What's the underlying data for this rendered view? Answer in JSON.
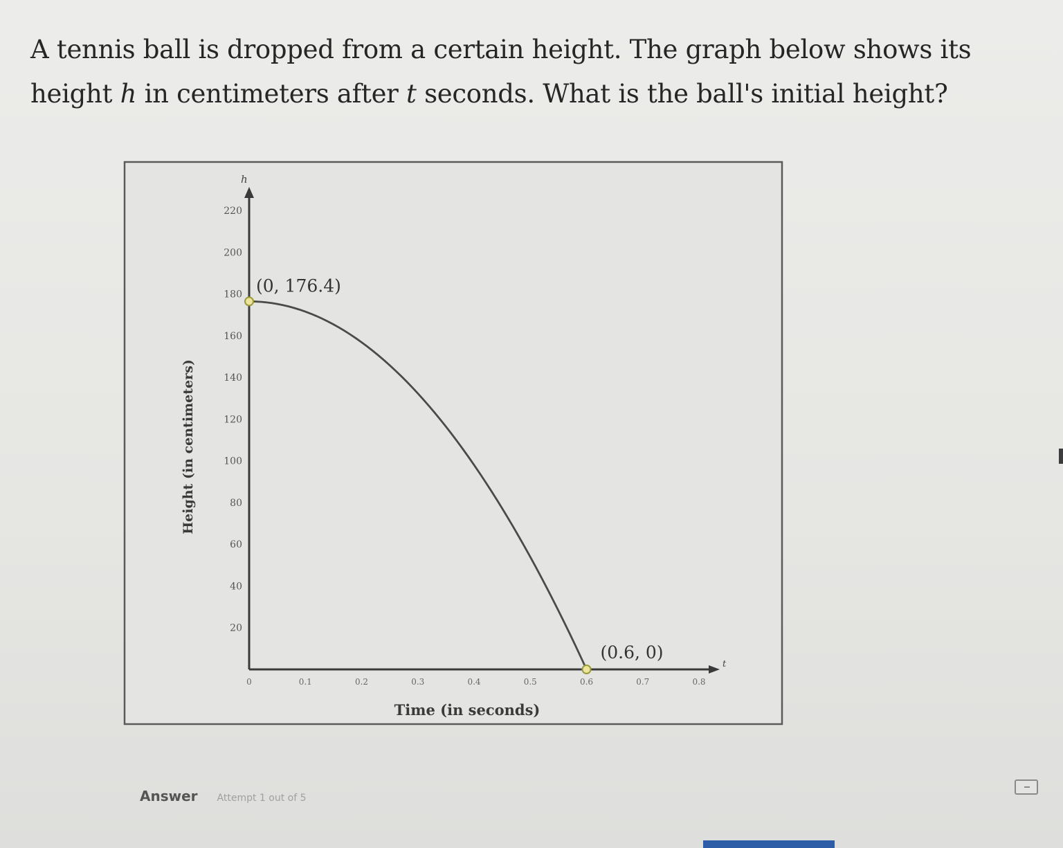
{
  "question": {
    "part1": "A tennis ball is dropped from a certain height. The graph below shows its height ",
    "var_h": "h",
    "part2": " in centimeters after ",
    "var_t": "t",
    "part3": " seconds. What is the ball's initial height?"
  },
  "answer": {
    "label": "Answer",
    "attempt": "Attempt 1 out of 5"
  },
  "colors": {
    "curve": "#4a4a4a",
    "axis": "#3a3a3a",
    "point_fill": "#ece49a",
    "point_stroke": "#9a9a3a",
    "progress_bar": "#2e5da8"
  },
  "chart_data": {
    "type": "line",
    "xlabel": "Time (in seconds)",
    "ylabel": "Height (in centimeters)",
    "x_axis_var": "t",
    "y_axis_var": "h",
    "xlim": [
      0,
      0.8
    ],
    "ylim": [
      0,
      220
    ],
    "x_ticks": [
      "0",
      "0.1",
      "0.2",
      "0.3",
      "0.4",
      "0.5",
      "0.6",
      "0.7",
      "0.8"
    ],
    "y_ticks": [
      "20",
      "40",
      "60",
      "80",
      "100",
      "120",
      "140",
      "160",
      "180",
      "200",
      "220"
    ],
    "grid": false,
    "series": [
      {
        "x": [
          0,
          0.1,
          0.2,
          0.3,
          0.4,
          0.5,
          0.6
        ],
        "y": [
          176.4,
          171.5,
          156.8,
          132.3,
          98.0,
          53.9,
          0
        ]
      }
    ],
    "points": [
      {
        "x": 0,
        "y": 176.4,
        "label": "(0, 176.4)"
      },
      {
        "x": 0.6,
        "y": 0,
        "label": "(0.6, 0)"
      }
    ]
  }
}
